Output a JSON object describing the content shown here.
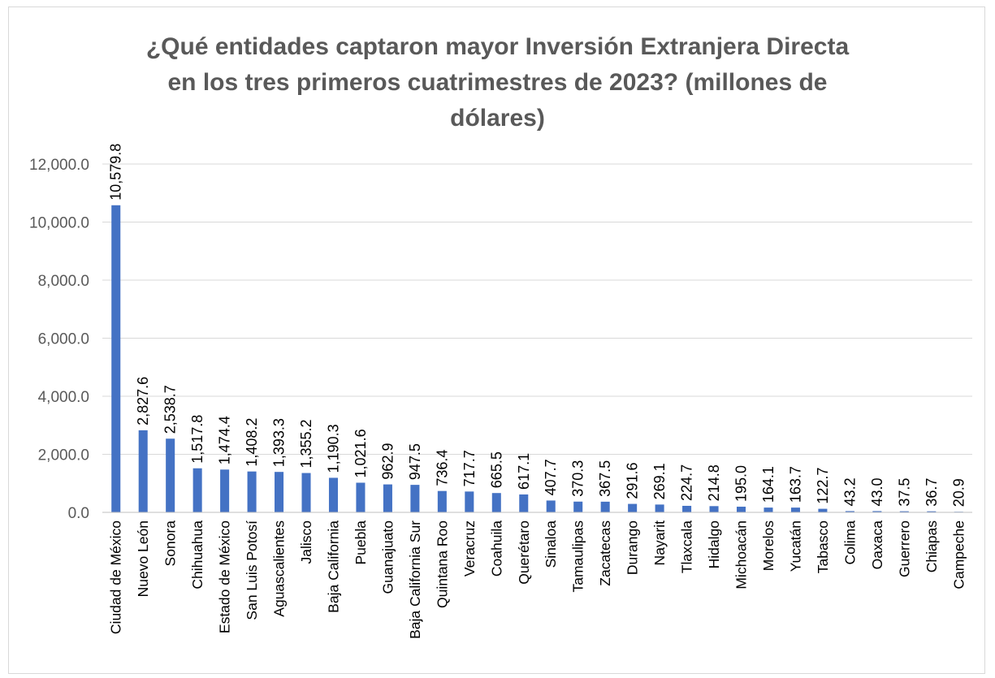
{
  "chart_data": {
    "type": "bar",
    "title_lines": [
      "¿Qué entidades captaron mayor Inversión Extranjera Directa",
      "en los tres primeros cuatrimestres de 2023? (millones de",
      "dólares)"
    ],
    "categories": [
      "Ciudad de México",
      "Nuevo León",
      "Sonora",
      "Chihuahua",
      "Estado de México",
      "San Luis Potosí",
      "Aguascalientes",
      "Jalisco",
      "Baja California",
      "Puebla",
      "Guanajuato",
      "Baja California Sur",
      "Quintana Roo",
      "Veracruz",
      "Coahuila",
      "Querétaro",
      "Sinaloa",
      "Tamaulipas",
      "Zacatecas",
      "Durango",
      "Nayarit",
      "Tlaxcala",
      "Hidalgo",
      "Michoacán",
      "Morelos",
      "Yucatán",
      "Tabasco",
      "Colima",
      "Oaxaca",
      "Guerrero",
      "Chiapas",
      "Campeche"
    ],
    "values": [
      10579.8,
      2827.6,
      2538.7,
      1517.8,
      1474.4,
      1408.2,
      1393.3,
      1355.2,
      1190.3,
      1021.6,
      962.9,
      947.5,
      736.4,
      717.7,
      665.5,
      617.1,
      407.7,
      370.3,
      367.5,
      291.6,
      269.1,
      224.7,
      214.8,
      195.0,
      164.1,
      163.7,
      122.7,
      43.2,
      43.0,
      37.5,
      36.7,
      20.9
    ],
    "data_labels": [
      "10,579.8",
      "2,827.6",
      "2,538.7",
      "1,517.8",
      "1,474.4",
      "1,408.2",
      "1,393.3",
      "1,355.2",
      "1,190.3",
      "1,021.6",
      "962.9",
      "947.5",
      "736.4",
      "717.7",
      "665.5",
      "617.1",
      "407.7",
      "370.3",
      "367.5",
      "291.6",
      "269.1",
      "224.7",
      "214.8",
      "195.0",
      "164.1",
      "163.7",
      "122.7",
      "43.2",
      "43.0",
      "37.5",
      "36.7",
      "20.9"
    ],
    "yticks": [
      0,
      2000,
      4000,
      6000,
      8000,
      10000,
      12000
    ],
    "ytick_labels": [
      "0.0",
      "2,000.0",
      "4,000.0",
      "6,000.0",
      "8,000.0",
      "10,000.0",
      "12,000.0"
    ],
    "ylim": [
      0,
      12000
    ],
    "grid": true,
    "legend": "none",
    "colors": {
      "bar": "#4472C4",
      "grid": "#d9d9d9",
      "text": "#595959"
    }
  }
}
